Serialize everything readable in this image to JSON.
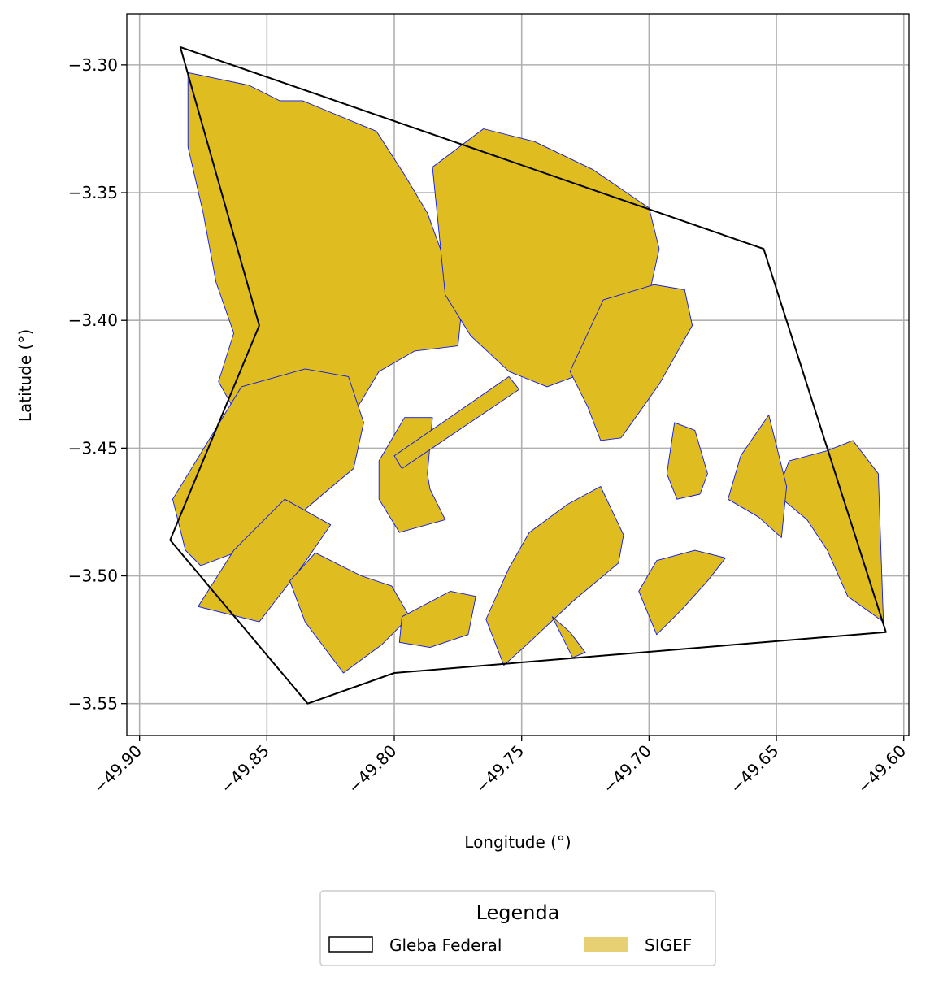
{
  "map": {
    "type": "geographic-plot",
    "xlabel": "Longitude (°)",
    "ylabel": "Latitude (°)",
    "xlim": [
      -49.905,
      -49.598
    ],
    "ylim": [
      -3.5625,
      -3.28
    ],
    "x_ticks": [
      -49.9,
      -49.85,
      -49.8,
      -49.75,
      -49.7,
      -49.65,
      -49.6
    ],
    "x_tick_labels": [
      "−49.90",
      "−49.85",
      "−49.80",
      "−49.75",
      "−49.70",
      "−49.65",
      "−49.60"
    ],
    "y_ticks": [
      -3.3,
      -3.35,
      -3.4,
      -3.45,
      -3.5,
      -3.55
    ],
    "y_tick_labels": [
      "−3.30",
      "−3.35",
      "−3.40",
      "−3.45",
      "−3.50",
      "−3.55"
    ],
    "grid": true,
    "tick_label_rotation_deg": 45,
    "gleba_boundary": [
      [
        -49.884,
        -3.293
      ],
      [
        -49.655,
        -3.372
      ],
      [
        -49.607,
        -3.522
      ],
      [
        -49.8,
        -3.538
      ],
      [
        -49.834,
        -3.55
      ],
      [
        -49.888,
        -3.486
      ],
      [
        -49.853,
        -3.402
      ],
      [
        -49.884,
        -3.293
      ]
    ],
    "sigef_parcels": [
      [
        [
          -49.881,
          -3.303
        ],
        [
          -49.857,
          -3.308
        ],
        [
          -49.845,
          -3.314
        ],
        [
          -49.836,
          -3.314
        ],
        [
          -49.807,
          -3.326
        ],
        [
          -49.796,
          -3.343
        ],
        [
          -49.787,
          -3.358
        ],
        [
          -49.779,
          -3.38
        ],
        [
          -49.774,
          -3.4
        ],
        [
          -49.775,
          -3.41
        ],
        [
          -49.792,
          -3.412
        ],
        [
          -49.806,
          -3.42
        ],
        [
          -49.812,
          -3.43
        ],
        [
          -49.817,
          -3.438
        ],
        [
          -49.833,
          -3.455
        ],
        [
          -49.848,
          -3.45
        ],
        [
          -49.86,
          -3.44
        ],
        [
          -49.869,
          -3.424
        ],
        [
          -49.863,
          -3.405
        ],
        [
          -49.87,
          -3.385
        ],
        [
          -49.875,
          -3.358
        ],
        [
          -49.881,
          -3.332
        ]
      ],
      [
        [
          -49.785,
          -3.34
        ],
        [
          -49.765,
          -3.325
        ],
        [
          -49.745,
          -3.33
        ],
        [
          -49.722,
          -3.341
        ],
        [
          -49.7,
          -3.356
        ],
        [
          -49.696,
          -3.372
        ],
        [
          -49.7,
          -3.39
        ],
        [
          -49.713,
          -3.405
        ],
        [
          -49.724,
          -3.42
        ],
        [
          -49.74,
          -3.426
        ],
        [
          -49.755,
          -3.42
        ],
        [
          -49.77,
          -3.406
        ],
        [
          -49.78,
          -3.39
        ]
      ],
      [
        [
          -49.718,
          -3.392
        ],
        [
          -49.698,
          -3.386
        ],
        [
          -49.686,
          -3.388
        ],
        [
          -49.683,
          -3.402
        ],
        [
          -49.696,
          -3.425
        ],
        [
          -49.711,
          -3.446
        ],
        [
          -49.719,
          -3.447
        ],
        [
          -49.724,
          -3.434
        ],
        [
          -49.731,
          -3.42
        ]
      ],
      [
        [
          -49.887,
          -3.47
        ],
        [
          -49.86,
          -3.426
        ],
        [
          -49.835,
          -3.419
        ],
        [
          -49.818,
          -3.422
        ],
        [
          -49.812,
          -3.44
        ],
        [
          -49.816,
          -3.458
        ],
        [
          -49.828,
          -3.468
        ],
        [
          -49.842,
          -3.48
        ],
        [
          -49.86,
          -3.49
        ],
        [
          -49.876,
          -3.496
        ],
        [
          -49.882,
          -3.49
        ]
      ],
      [
        [
          -49.825,
          -3.48
        ],
        [
          -49.843,
          -3.47
        ],
        [
          -49.863,
          -3.49
        ],
        [
          -49.877,
          -3.512
        ],
        [
          -49.853,
          -3.518
        ],
        [
          -49.836,
          -3.496
        ]
      ],
      [
        [
          -49.796,
          -3.438
        ],
        [
          -49.785,
          -3.438
        ],
        [
          -49.787,
          -3.46
        ],
        [
          -49.786,
          -3.466
        ],
        [
          -49.78,
          -3.478
        ],
        [
          -49.798,
          -3.483
        ],
        [
          -49.806,
          -3.47
        ],
        [
          -49.806,
          -3.455
        ]
      ],
      [
        [
          -49.755,
          -3.422
        ],
        [
          -49.8,
          -3.453
        ],
        [
          -49.797,
          -3.458
        ],
        [
          -49.751,
          -3.427
        ]
      ],
      [
        [
          -49.69,
          -3.44
        ],
        [
          -49.682,
          -3.443
        ],
        [
          -49.677,
          -3.46
        ],
        [
          -49.68,
          -3.468
        ],
        [
          -49.689,
          -3.47
        ],
        [
          -49.693,
          -3.46
        ]
      ],
      [
        [
          -49.645,
          -3.455
        ],
        [
          -49.63,
          -3.451
        ],
        [
          -49.62,
          -3.447
        ],
        [
          -49.61,
          -3.46
        ],
        [
          -49.608,
          -3.518
        ],
        [
          -49.622,
          -3.508
        ],
        [
          -49.63,
          -3.49
        ],
        [
          -49.638,
          -3.478
        ],
        [
          -49.65,
          -3.468
        ]
      ],
      [
        [
          -49.653,
          -3.437
        ],
        [
          -49.664,
          -3.453
        ],
        [
          -49.669,
          -3.47
        ],
        [
          -49.657,
          -3.477
        ],
        [
          -49.648,
          -3.485
        ],
        [
          -49.646,
          -3.465
        ]
      ],
      [
        [
          -49.813,
          -3.5
        ],
        [
          -49.831,
          -3.491
        ],
        [
          -49.841,
          -3.502
        ],
        [
          -49.835,
          -3.518
        ],
        [
          -49.82,
          -3.538
        ],
        [
          -49.805,
          -3.527
        ],
        [
          -49.794,
          -3.516
        ],
        [
          -49.801,
          -3.504
        ]
      ],
      [
        [
          -49.797,
          -3.516
        ],
        [
          -49.778,
          -3.506
        ],
        [
          -49.768,
          -3.508
        ],
        [
          -49.771,
          -3.523
        ],
        [
          -49.786,
          -3.528
        ],
        [
          -49.798,
          -3.526
        ]
      ],
      [
        [
          -49.755,
          -3.497
        ],
        [
          -49.747,
          -3.483
        ],
        [
          -49.732,
          -3.472
        ],
        [
          -49.719,
          -3.465
        ],
        [
          -49.71,
          -3.484
        ],
        [
          -49.712,
          -3.495
        ],
        [
          -49.73,
          -3.51
        ],
        [
          -49.747,
          -3.526
        ],
        [
          -49.757,
          -3.535
        ],
        [
          -49.764,
          -3.517
        ]
      ],
      [
        [
          -49.704,
          -3.506
        ],
        [
          -49.697,
          -3.494
        ],
        [
          -49.682,
          -3.49
        ],
        [
          -49.67,
          -3.493
        ],
        [
          -49.677,
          -3.502
        ],
        [
          -49.687,
          -3.513
        ],
        [
          -49.697,
          -3.523
        ]
      ],
      [
        [
          -49.738,
          -3.516
        ],
        [
          -49.731,
          -3.522
        ],
        [
          -49.725,
          -3.53
        ],
        [
          -49.73,
          -3.532
        ]
      ]
    ]
  },
  "legend": {
    "title": "Legenda",
    "entries": [
      {
        "label": "Gleba Federal",
        "style": "outline",
        "color": "#000000"
      },
      {
        "label": "SIGEF",
        "style": "fill",
        "color": "#e7d073"
      }
    ]
  },
  "colors": {
    "parcel_fill": "#dfbd20",
    "parcel_edge": "#0a16ee",
    "gleba_edge": "#000000",
    "grid": "#b0b0b0",
    "legend_border": "#cccccc"
  }
}
